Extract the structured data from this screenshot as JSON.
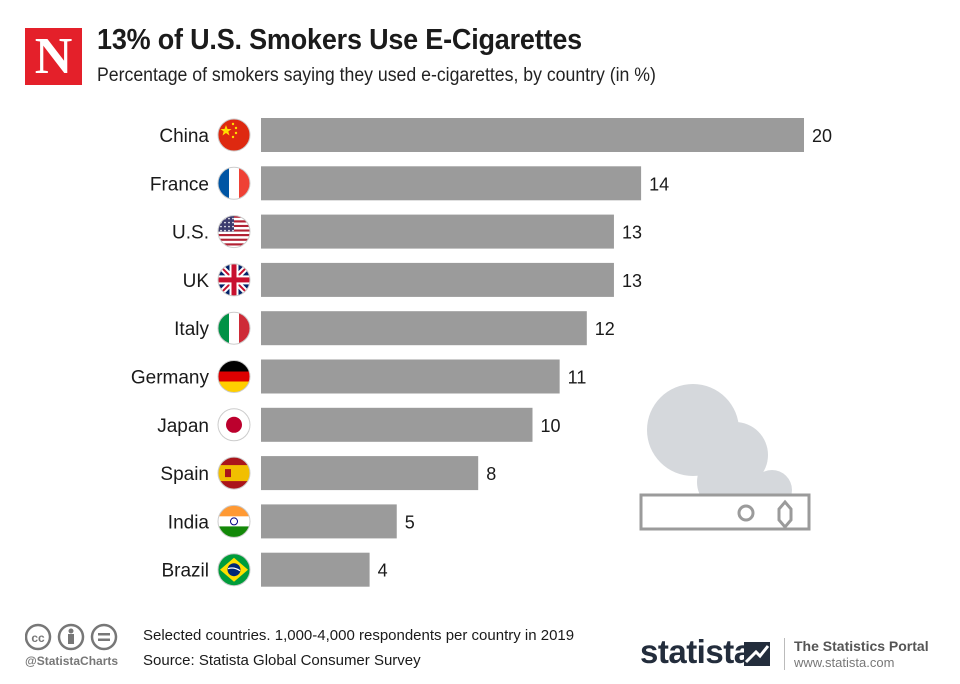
{
  "header": {
    "logo_letter": "N",
    "title": "13% of U.S. Smokers Use E-Cigarettes",
    "subtitle": "Percentage of smokers saying they used e-cigarettes, by country (in %)"
  },
  "chart_data": {
    "type": "bar",
    "orientation": "horizontal",
    "title": "13% of U.S. Smokers Use E-Cigarettes",
    "subtitle": "Percentage of smokers saying they used e-cigarettes, by country (in %)",
    "categories": [
      "China",
      "France",
      "U.S.",
      "UK",
      "Italy",
      "Germany",
      "Japan",
      "Spain",
      "India",
      "Brazil"
    ],
    "values": [
      20,
      14,
      13,
      13,
      12,
      11,
      10,
      8,
      5,
      4
    ],
    "flags": [
      "china-flag",
      "france-flag",
      "usa-flag",
      "uk-flag",
      "italy-flag",
      "germany-flag",
      "japan-flag",
      "spain-flag",
      "india-flag",
      "brazil-flag"
    ],
    "bar_color": "#9b9b9b",
    "xlim": [
      0,
      20
    ],
    "xlabel": "",
    "ylabel": ""
  },
  "footer": {
    "note": "Selected countries. 1,000-4,000 respondents per country in 2019",
    "source": "Source: Statista Global Consumer Survey",
    "handle": "@StatistaCharts",
    "brand": "statista",
    "portal": "The Statistics Portal",
    "url": "www.statista.com"
  },
  "colors": {
    "accent": "#e4202a",
    "bar": "#9b9b9b",
    "illustration": "#d5d8dc",
    "brand": "#232d3c"
  }
}
